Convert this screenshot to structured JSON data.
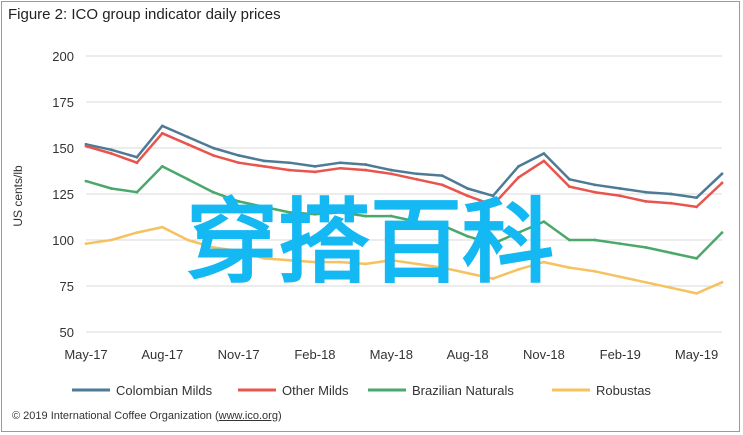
{
  "title": "Figure 2: ICO group indicator daily prices",
  "footer": {
    "prefix": "© 2019 International Coffee Organization (",
    "link": "www.ico.org",
    "suffix": ")"
  },
  "watermark": "穿搭百科",
  "colors": {
    "colombian": "#4d7a95",
    "other": "#e8554c",
    "brazilian": "#4aa86a",
    "robustas": "#f6c15f",
    "watermark": "#14b8f2",
    "grid": "#d9d9d9"
  },
  "chart_data": {
    "type": "line",
    "title": "Figure 2: ICO group indicator daily prices",
    "xlabel": "",
    "ylabel": "US cents/lb",
    "ylim": [
      50,
      200
    ],
    "yticks": [
      50,
      75,
      100,
      125,
      150,
      175,
      200
    ],
    "grid": true,
    "legend": "bottom",
    "x_ticks": [
      "May-17",
      "Aug-17",
      "Nov-17",
      "Feb-18",
      "May-18",
      "Aug-18",
      "Nov-18",
      "Feb-19",
      "May-19"
    ],
    "x": [
      "May-17",
      "Jun-17",
      "Jul-17",
      "Aug-17",
      "Sep-17",
      "Oct-17",
      "Nov-17",
      "Dec-17",
      "Jan-18",
      "Feb-18",
      "Mar-18",
      "Apr-18",
      "May-18",
      "Jun-18",
      "Jul-18",
      "Aug-18",
      "Sep-18",
      "Oct-18",
      "Nov-18",
      "Dec-18",
      "Jan-19",
      "Feb-19",
      "Mar-19",
      "Apr-19",
      "May-19",
      "Jun-19"
    ],
    "series": [
      {
        "name": "Colombian Milds",
        "color": "#4d7a95",
        "values": [
          152,
          149,
          145,
          162,
          156,
          150,
          146,
          143,
          142,
          140,
          142,
          141,
          138,
          136,
          135,
          128,
          124,
          140,
          147,
          133,
          130,
          128,
          126,
          125,
          123,
          136
        ]
      },
      {
        "name": "Other Milds",
        "color": "#e8554c",
        "values": [
          151,
          147,
          142,
          158,
          152,
          146,
          142,
          140,
          138,
          137,
          139,
          138,
          136,
          133,
          130,
          124,
          119,
          134,
          143,
          129,
          126,
          124,
          121,
          120,
          118,
          131
        ]
      },
      {
        "name": "Brazilian Naturals",
        "color": "#4aa86a",
        "values": [
          132,
          128,
          126,
          140,
          133,
          126,
          121,
          118,
          115,
          114,
          115,
          113,
          113,
          110,
          108,
          102,
          98,
          104,
          110,
          100,
          100,
          98,
          96,
          93,
          90,
          104
        ]
      },
      {
        "name": "Robustas",
        "color": "#f6c15f",
        "values": [
          98,
          100,
          104,
          107,
          100,
          96,
          94,
          90,
          89,
          88,
          88,
          87,
          89,
          87,
          85,
          82,
          79,
          84,
          88,
          85,
          83,
          80,
          77,
          74,
          71,
          77
        ]
      }
    ]
  }
}
